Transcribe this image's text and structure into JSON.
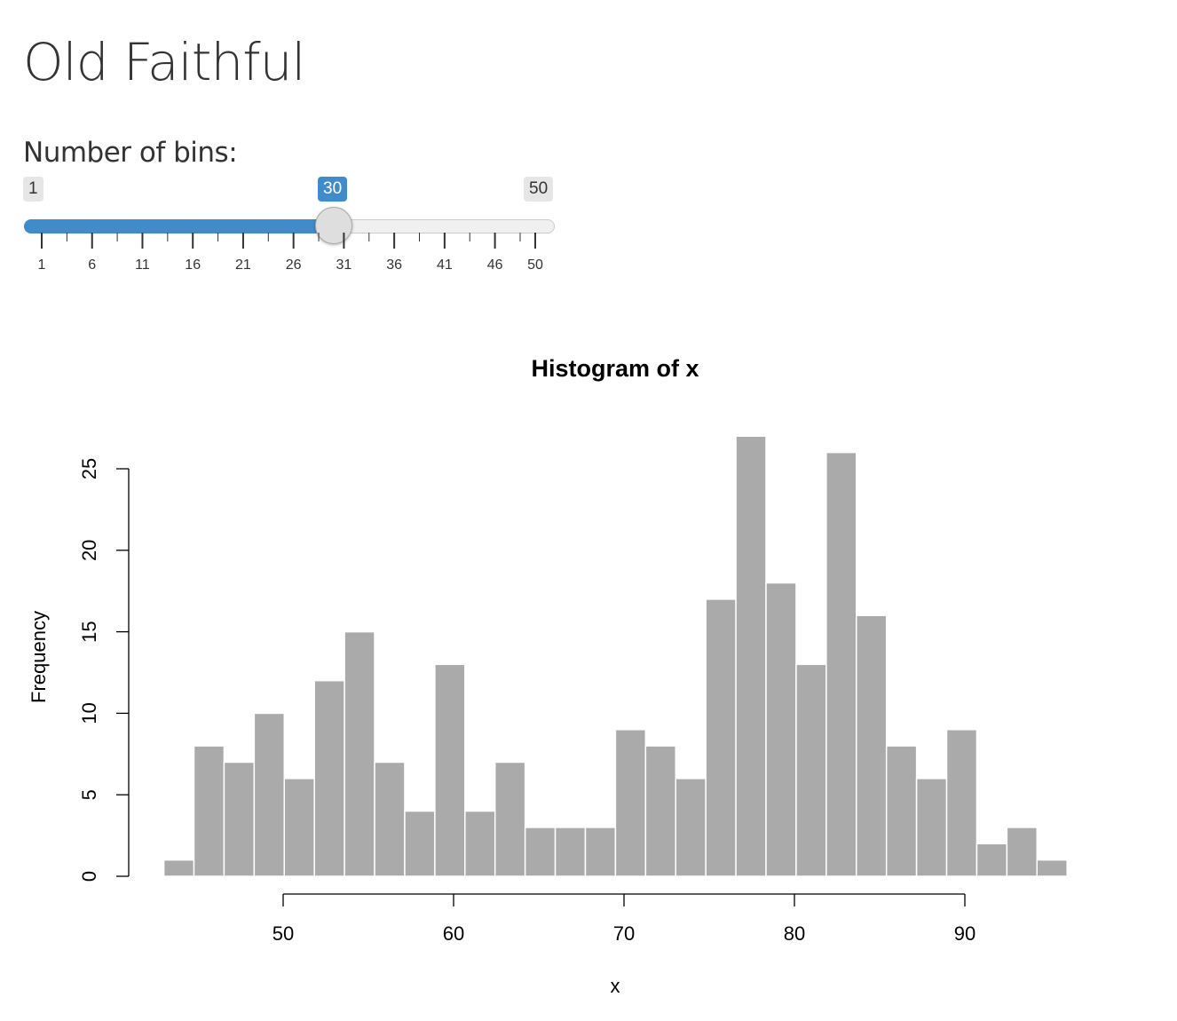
{
  "page": {
    "title": "Old Faithful"
  },
  "slider": {
    "label": "Number of bins:",
    "min": 1,
    "max": 50,
    "value": 30,
    "min_label": "1",
    "max_label": "50",
    "value_label": "30",
    "tick_labels": [
      "1",
      "6",
      "11",
      "16",
      "21",
      "26",
      "31",
      "36",
      "41",
      "46",
      "50"
    ],
    "accent": "#428bca"
  },
  "chart_data": {
    "type": "bar",
    "title": "Histogram of x",
    "xlabel": "x",
    "ylabel": "Frequency",
    "bin_start": 43,
    "bin_end": 96,
    "values": [
      1,
      8,
      7,
      10,
      6,
      12,
      15,
      7,
      4,
      13,
      4,
      7,
      3,
      3,
      3,
      9,
      8,
      6,
      17,
      27,
      18,
      13,
      26,
      16,
      8,
      6,
      9,
      2,
      3,
      1
    ],
    "xticks": [
      50,
      60,
      70,
      80,
      90
    ],
    "yticks": [
      0,
      5,
      10,
      15,
      20,
      25
    ],
    "bar_color": "#aaaaaa",
    "grid": false
  }
}
